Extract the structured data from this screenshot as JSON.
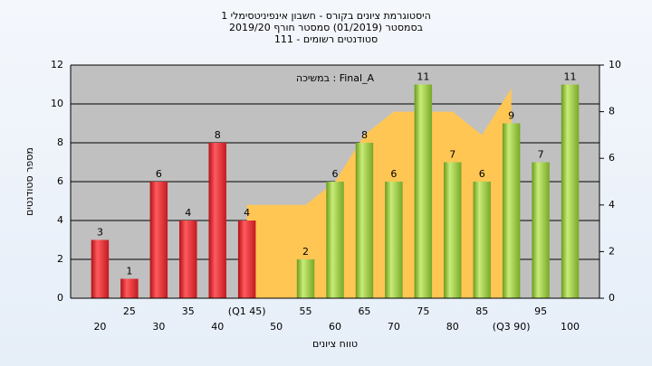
{
  "chart_data": {
    "type": "bar",
    "title": [
      "היסטוגרמת ציונים בקורס - חשבון אינפיניטסימלי 1",
      "בסמסטר  (01/2019)  סמסטר חורף 2019/20",
      "סטודנטים רשומים - 111"
    ],
    "annotation": "במשיכה : Final_A",
    "x_label": "טווח ציונים",
    "y_label": "מספר סטודנטים",
    "categories": [
      "20",
      "25",
      "30",
      "35",
      "40",
      "(Q1 45)",
      "50",
      "55",
      "60",
      "65",
      "70",
      "75",
      "80",
      "85",
      "(Q3 90)",
      "95",
      "100"
    ],
    "series": [
      {
        "type": "bar",
        "colors": [
          "#e0262c",
          "#96c83a"
        ],
        "values": [
          3,
          1,
          6,
          4,
          8,
          4,
          null,
          2,
          6,
          8,
          6,
          11,
          7,
          6,
          9,
          7,
          11
        ]
      },
      {
        "type": "area",
        "axis": "y2",
        "color": "#ffc654",
        "values": [
          null,
          null,
          null,
          null,
          null,
          4,
          4,
          4,
          5,
          7,
          8,
          8,
          8,
          7,
          9,
          null,
          null
        ]
      }
    ],
    "ylim": [
      0,
      12
    ],
    "yticks": [
      0,
      2,
      4,
      6,
      8,
      10,
      12
    ],
    "y2lim": [
      0,
      10
    ],
    "y2ticks": [
      0,
      2,
      4,
      6,
      8,
      10
    ],
    "grid": true
  }
}
